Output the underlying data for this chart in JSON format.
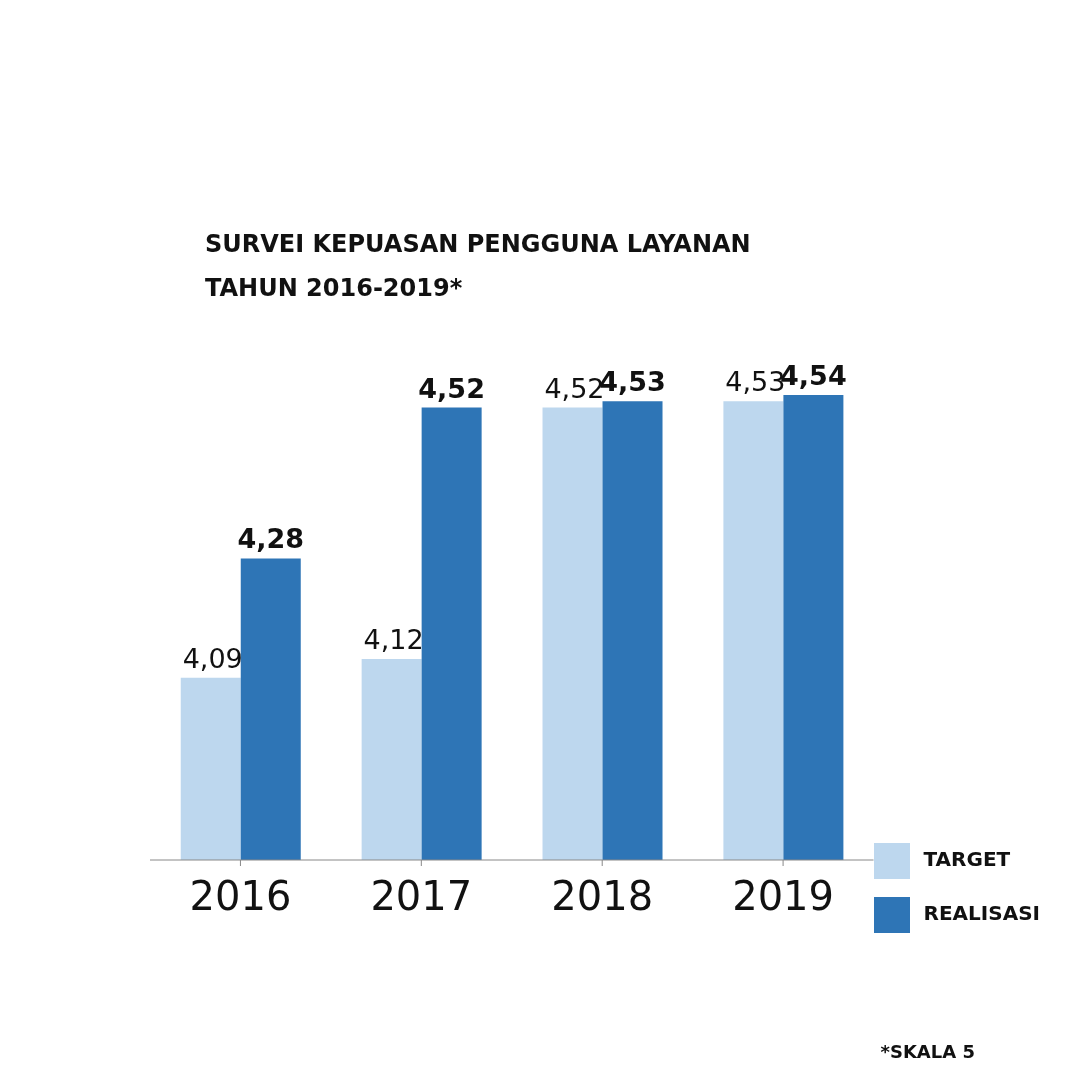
{
  "chart_data": {
    "type": "bar",
    "title": "SURVEI KEPUASAN PENGGUNA LAYANAN\nTAHUN 2016-2019*",
    "categories": [
      "2016",
      "2017",
      "2018",
      "2019"
    ],
    "series": [
      {
        "name": "TARGET",
        "color": "#bdd7ee",
        "values": [
          4.09,
          4.12,
          4.52,
          4.53
        ],
        "value_labels": [
          "4,09",
          "4,12",
          "4,52",
          "4,53"
        ]
      },
      {
        "name": "REALISASI",
        "color": "#2e75b6",
        "values": [
          4.28,
          4.52,
          4.53,
          4.54
        ],
        "value_labels": [
          "4,28",
          "4,52",
          "4,53",
          "4,54"
        ]
      }
    ],
    "ylim": [
      3.8,
      4.54
    ],
    "tick_labels": "x",
    "legend": "bottom right",
    "annotations": [
      "*SKALA 5"
    ]
  }
}
